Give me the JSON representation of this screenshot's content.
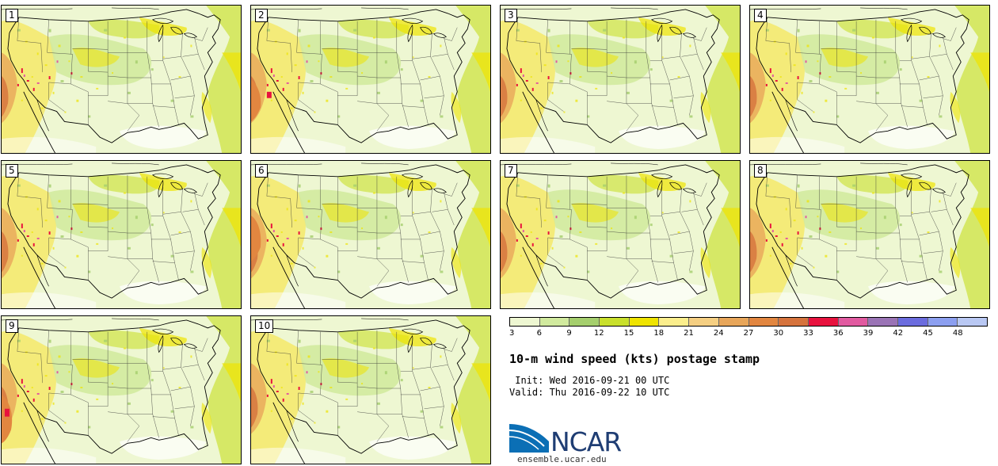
{
  "chart_data": {
    "type": "heatmap",
    "title": "10-m wind speed (kts) postage stamp",
    "variable": "10-m wind speed",
    "units": "kts",
    "members": [
      "1",
      "2",
      "3",
      "4",
      "5",
      "6",
      "7",
      "8",
      "9",
      "10"
    ],
    "colorbar": {
      "ticks": [
        3,
        6,
        9,
        12,
        15,
        18,
        21,
        24,
        27,
        30,
        33,
        36,
        39,
        42,
        45,
        48
      ],
      "colors": [
        "#eef7d2",
        "#d1ea9e",
        "#a5cf6d",
        "#c9e02c",
        "#efe400",
        "#fbee8c",
        "#f5cf82",
        "#e8a65a",
        "#e28640",
        "#d6733d",
        "#e8123e",
        "#e15aa0",
        "#9a73b5",
        "#6b6cde",
        "#8c9ff0",
        "#b9c8f3"
      ]
    }
  },
  "info": {
    "init": " Init: Wed 2016-09-21 00 UTC",
    "valid": "Valid: Thu 2016-09-22 10 UTC"
  },
  "logo": {
    "text": "NCAR",
    "url": "ensemble.ucar.edu"
  }
}
